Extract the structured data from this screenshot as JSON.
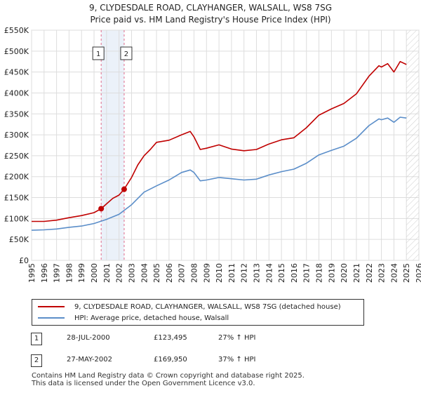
{
  "chart_data": {
    "type": "line",
    "title": "9, CLYDESDALE ROAD, CLAYHANGER, WALSALL, WS8 7SG",
    "subtitle": "Price paid vs. HM Land Registry's House Price Index (HPI)",
    "x_ticks": [
      "1995",
      "1996",
      "1997",
      "1998",
      "1999",
      "2000",
      "2001",
      "2002",
      "2003",
      "2004",
      "2005",
      "2006",
      "2007",
      "2008",
      "2009",
      "2010",
      "2011",
      "2012",
      "2013",
      "2014",
      "2015",
      "2016",
      "2017",
      "2018",
      "2019",
      "2020",
      "2021",
      "2022",
      "2023",
      "2024",
      "2025",
      "2026"
    ],
    "y_ticks": [
      "£0",
      "£50K",
      "£100K",
      "£150K",
      "£200K",
      "£250K",
      "£300K",
      "£350K",
      "£400K",
      "£450K",
      "£500K",
      "£550K"
    ],
    "xlim": [
      1995,
      2026
    ],
    "ylim": [
      0,
      550000
    ],
    "grid": true,
    "series": [
      {
        "name": "9, CLYDESDALE ROAD, CLAYHANGER, WALSALL, WS8 7SG (detached house)",
        "color": "#c00000",
        "x": [
          1995,
          1996,
          1997,
          1998,
          1999,
          2000,
          2000.57,
          2001,
          2001.5,
          2002,
          2002.41,
          2003,
          2003.5,
          2004,
          2004.5,
          2005,
          2006,
          2007,
          2007.7,
          2008,
          2008.5,
          2009,
          2010,
          2011,
          2012,
          2013,
          2014,
          2015,
          2016,
          2017,
          2018,
          2019,
          2020,
          2021,
          2022,
          2022.8,
          2023,
          2023.5,
          2024,
          2024.5,
          2025
        ],
        "y": [
          93000,
          93000,
          96000,
          102000,
          107000,
          114000,
          123495,
          135000,
          148000,
          156000,
          169950,
          198000,
          228000,
          250000,
          265000,
          282000,
          287000,
          300000,
          308000,
          295000,
          265000,
          268000,
          276000,
          266000,
          262000,
          265000,
          278000,
          288000,
          293000,
          317000,
          347000,
          362000,
          375000,
          398000,
          440000,
          465000,
          462000,
          470000,
          450000,
          475000,
          468000
        ]
      },
      {
        "name": "HPI: Average price, detached house, Walsall",
        "color": "#5b8ec9",
        "x": [
          1995,
          1996,
          1997,
          1998,
          1999,
          2000,
          2001,
          2002,
          2003,
          2004,
          2005,
          2006,
          2007,
          2007.7,
          2008,
          2008.5,
          2009,
          2010,
          2011,
          2012,
          2013,
          2014,
          2015,
          2016,
          2017,
          2018,
          2019,
          2020,
          2021,
          2022,
          2022.8,
          2023,
          2023.5,
          2024,
          2024.5,
          2025
        ],
        "y": [
          72000,
          73000,
          75000,
          79000,
          82000,
          88000,
          98000,
          110000,
          133000,
          163000,
          178000,
          192000,
          210000,
          216000,
          210000,
          190000,
          192000,
          198000,
          195000,
          192000,
          194000,
          204000,
          212000,
          218000,
          232000,
          252000,
          263000,
          273000,
          292000,
          322000,
          338000,
          336000,
          340000,
          330000,
          342000,
          340000
        ]
      }
    ],
    "markers": [
      {
        "label": "1",
        "x": 2000.57,
        "y": 123495
      },
      {
        "label": "2",
        "x": 2002.41,
        "y": 169950
      }
    ]
  },
  "legend": {
    "items": [
      {
        "label": "9, CLYDESDALE ROAD, CLAYHANGER, WALSALL, WS8 7SG (detached house)",
        "color": "#c00000"
      },
      {
        "label": "HPI: Average price, detached house, Walsall",
        "color": "#5b8ec9"
      }
    ]
  },
  "transactions": [
    {
      "num": "1",
      "date": "28-JUL-2000",
      "price": "£123,495",
      "hpi": "27% ↑ HPI"
    },
    {
      "num": "2",
      "date": "27-MAY-2002",
      "price": "£169,950",
      "hpi": "37% ↑ HPI"
    }
  ],
  "footer": {
    "line1": "Contains HM Land Registry data © Crown copyright and database right 2025.",
    "line2": "This data is licensed under the Open Government Licence v3.0."
  }
}
